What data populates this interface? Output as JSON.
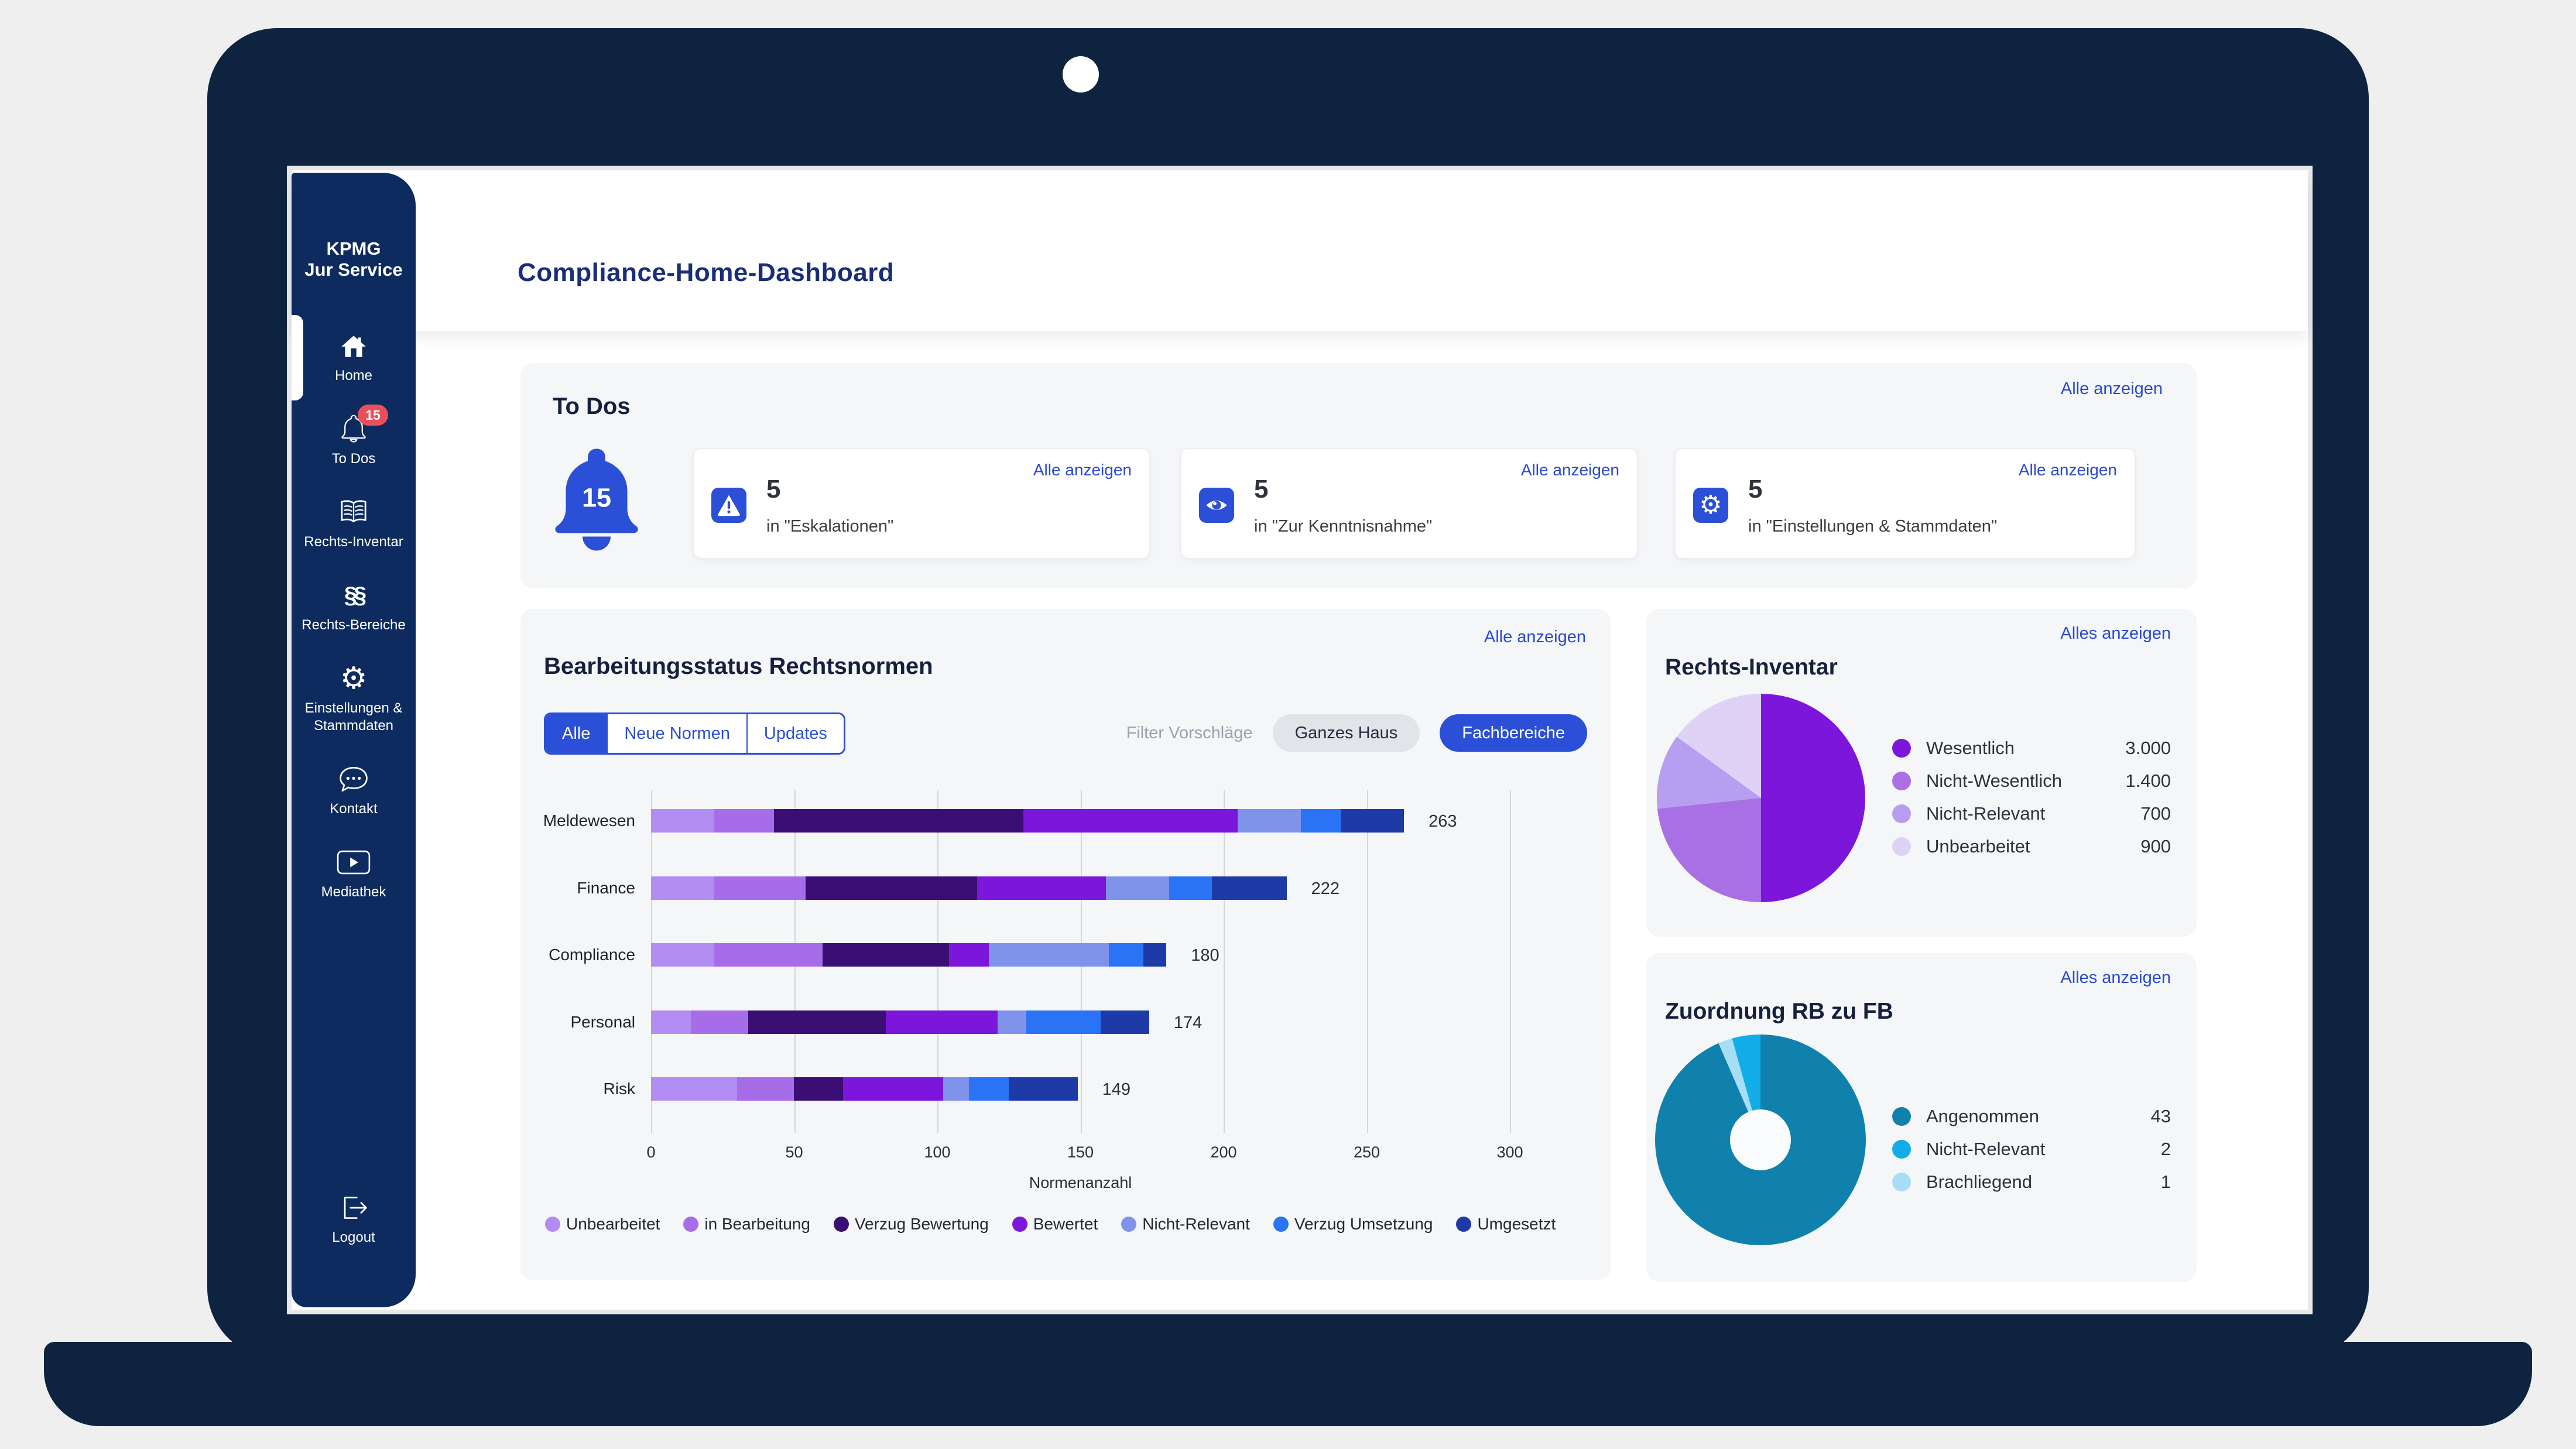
{
  "header": {
    "title": "Compliance-Home-Dashboard"
  },
  "sidebar": {
    "logo_line1": "KPMG",
    "logo_line2": "Jur Service",
    "items": [
      {
        "label": "Home",
        "icon": "home-icon",
        "active": true
      },
      {
        "label": "To Dos",
        "icon": "bell-icon",
        "badge": "15"
      },
      {
        "label": "Rechts-Inventar",
        "icon": "book-icon"
      },
      {
        "label": "Rechts-Bereiche",
        "icon": "paragraph-icon",
        "glyph": "§§"
      },
      {
        "label": "Einstellungen & Stammdaten",
        "icon": "gear-icon",
        "glyph": "⚙"
      },
      {
        "label": "Kontakt",
        "icon": "chat-icon"
      },
      {
        "label": "Mediathek",
        "icon": "play-icon"
      }
    ],
    "logout": {
      "label": "Logout",
      "icon": "logout-icon"
    }
  },
  "todos": {
    "title": "To Dos",
    "show_all": "Alle anzeigen",
    "bell_count": "15",
    "cards": [
      {
        "icon": "warning-icon",
        "count": "5",
        "subtitle": "in \"Eskalationen\"",
        "link": "Alle anzeigen"
      },
      {
        "icon": "eye-icon",
        "count": "5",
        "subtitle": "in \"Zur Kenntnisnahme\"",
        "link": "Alle anzeigen"
      },
      {
        "icon": "gear-icon",
        "count": "5",
        "subtitle": "in \"Einstellungen & Stammdaten\"",
        "link": "Alle anzeigen"
      }
    ]
  },
  "status_section": {
    "title": "Bearbeitungsstatus Rechtsnormen",
    "show_all": "Alle anzeigen",
    "tabs": [
      {
        "label": "Alle",
        "active": true
      },
      {
        "label": "Neue Normen",
        "active": false
      },
      {
        "label": "Updates",
        "active": false
      }
    ],
    "filter_label": "Filter Vorschläge",
    "filter_buttons": [
      {
        "label": "Ganzes Haus",
        "style": "gray"
      },
      {
        "label": "Fachbereiche",
        "style": "blue"
      }
    ]
  },
  "inventar": {
    "title": "Rechts-Inventar",
    "show_all": "Alles anzeigen"
  },
  "zuordnung": {
    "title": "Zuordnung RB zu FB",
    "show_all": "Alles anzeigen"
  },
  "chart_data": [
    {
      "type": "bar",
      "orientation": "horizontal",
      "stacked": true,
      "title": "Bearbeitungsstatus Rechtsnormen",
      "categories": [
        "Meldewesen",
        "Finance",
        "Compliance",
        "Personal",
        "Risk"
      ],
      "totals": [
        263,
        222,
        180,
        174,
        149
      ],
      "series": [
        {
          "name": "Unbearbeitet",
          "color": "#b18df2",
          "values": [
            22,
            22,
            22,
            14,
            30
          ]
        },
        {
          "name": "in Bearbeitung",
          "color": "#a76de9",
          "values": [
            21,
            32,
            38,
            20,
            20
          ]
        },
        {
          "name": "Verzug Bewertung",
          "color": "#3a0e73",
          "values": [
            87,
            60,
            44,
            48,
            17
          ]
        },
        {
          "name": "Bewertet",
          "color": "#7c16da",
          "values": [
            75,
            45,
            14,
            39,
            35
          ]
        },
        {
          "name": "Nicht-Relevant",
          "color": "#7e93e9",
          "values": [
            22,
            22,
            42,
            10,
            9
          ]
        },
        {
          "name": "Verzug Umsetzung",
          "color": "#2b73f5",
          "values": [
            14,
            15,
            12,
            26,
            14
          ]
        },
        {
          "name": "Umgesetzt",
          "color": "#1d3aa6",
          "values": [
            22,
            26,
            8,
            17,
            24
          ]
        }
      ],
      "xlabel": "Normenanzahl",
      "xticks": [
        0,
        50,
        100,
        150,
        200,
        250,
        300
      ],
      "xlim": [
        0,
        300
      ],
      "grid": true,
      "legend_position": "bottom"
    },
    {
      "type": "pie",
      "title": "Rechts-Inventar",
      "labels": [
        "Wesentlich",
        "Nicht-Wesentlich",
        "Nicht-Relevant",
        "Unbearbeitet"
      ],
      "values": [
        3000,
        1400,
        700,
        900
      ],
      "display_values": [
        "3.000",
        "1.400",
        "700",
        "900"
      ],
      "colors": [
        "#7c16da",
        "#a96fe4",
        "#b89ef0",
        "#ded2f7"
      ],
      "start_angle": 0,
      "direction": "clockwise"
    },
    {
      "type": "donut",
      "title": "Zuordnung RB zu FB",
      "labels": [
        "Angenommen",
        "Nicht-Relevant",
        "Brachliegend"
      ],
      "values": [
        43,
        2,
        1
      ],
      "display_values": [
        "43",
        "2",
        "1"
      ],
      "colors": [
        "#0f81ac",
        "#12ade8",
        "#a8ddf6"
      ],
      "draw_order": [
        0,
        2,
        1
      ],
      "hole_ratio": 0.29
    }
  ],
  "colors": {
    "accent": "#2b4fd6",
    "sidebar": "#0d2b5e",
    "laptop_frame": "#0e2340",
    "badge_red": "#ea4f5e",
    "panel_bg": "#f4f6f8",
    "link_blue": "#2949d2"
  }
}
